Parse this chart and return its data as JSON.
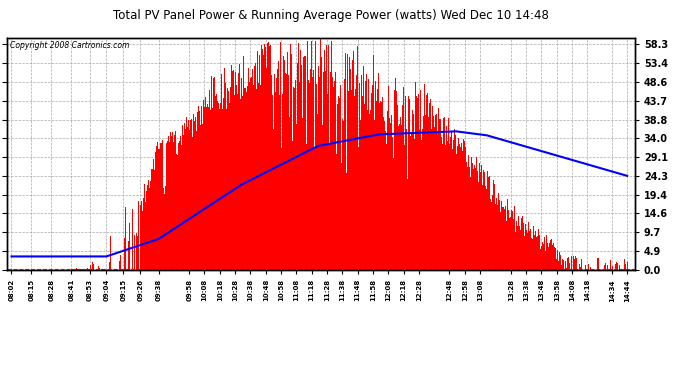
{
  "title": "Total PV Panel Power & Running Average Power (watts) Wed Dec 10 14:48",
  "copyright": "Copyright 2008 Cartronics.com",
  "background_color": "#ffffff",
  "plot_bg_color": "#ffffff",
  "bar_color": "#ff0000",
  "line_color": "#0000ff",
  "dashed_line_color": "#ff0000",
  "yticks": [
    0.0,
    4.9,
    9.7,
    14.6,
    19.4,
    24.3,
    29.1,
    34.0,
    38.8,
    43.7,
    48.6,
    53.4,
    58.3
  ],
  "ymax": 60.0,
  "x_labels": [
    "08:02",
    "08:15",
    "08:28",
    "08:41",
    "08:53",
    "09:04",
    "09:15",
    "09:26",
    "09:38",
    "09:58",
    "10:08",
    "10:18",
    "10:28",
    "10:38",
    "10:48",
    "10:58",
    "11:08",
    "11:18",
    "11:28",
    "11:38",
    "11:48",
    "11:58",
    "12:08",
    "12:18",
    "12:28",
    "12:48",
    "12:58",
    "13:08",
    "13:28",
    "13:38",
    "13:48",
    "13:58",
    "14:08",
    "14:18",
    "14:34",
    "14:44"
  ]
}
